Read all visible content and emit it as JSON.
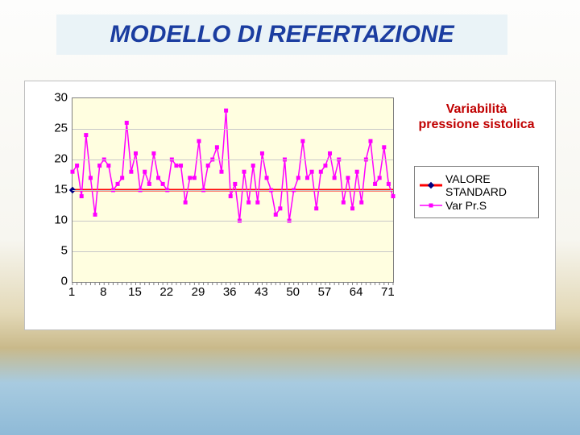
{
  "title": "MODELLO DI REFERTAZIONE",
  "chart": {
    "type": "line",
    "title_line1": "Variabilità",
    "title_line2": "pressione sistolica",
    "title_color": "#c00000",
    "title_fontsize": 16,
    "background_color": "#ffffff",
    "plot_bg_color": "#fffee0",
    "grid_color": "#c8c8c8",
    "axis_color": "#808080",
    "tick_fontsize": 15,
    "ylim": [
      0,
      30
    ],
    "ytick_step": 5,
    "xlim": [
      1,
      72
    ],
    "xticks": [
      1,
      8,
      15,
      22,
      29,
      36,
      43,
      50,
      57,
      64,
      71
    ],
    "series": [
      {
        "key": "standard",
        "label_line1": "VALORE",
        "label_line2": "STANDARD",
        "color": "#ff0000",
        "line_width": 3,
        "marker": "diamond",
        "marker_color": "#000080",
        "marker_size": 6,
        "y_const": 15,
        "x_range": [
          1,
          72
        ]
      },
      {
        "key": "varprs",
        "label": "Var Pr.S",
        "color": "#ff00ff",
        "line_width": 1.5,
        "marker": "square",
        "marker_color": "#ff00ff",
        "marker_size": 5,
        "data": [
          18,
          19,
          14,
          24,
          17,
          11,
          19,
          20,
          19,
          15,
          16,
          17,
          26,
          18,
          21,
          15,
          18,
          16,
          21,
          17,
          16,
          15,
          20,
          19,
          19,
          13,
          17,
          17,
          23,
          15,
          19,
          20,
          22,
          18,
          28,
          14,
          16,
          10,
          18,
          13,
          19,
          13,
          21,
          17,
          15,
          11,
          12,
          20,
          10,
          15,
          17,
          23,
          17,
          18,
          12,
          18,
          19,
          21,
          17,
          20,
          13,
          17,
          12,
          18,
          13,
          20,
          23,
          16,
          17,
          22,
          16,
          14
        ]
      }
    ],
    "legend": {
      "border_color": "#7f7f7f",
      "bg_color": "#ffffff",
      "fontsize": 14
    }
  }
}
